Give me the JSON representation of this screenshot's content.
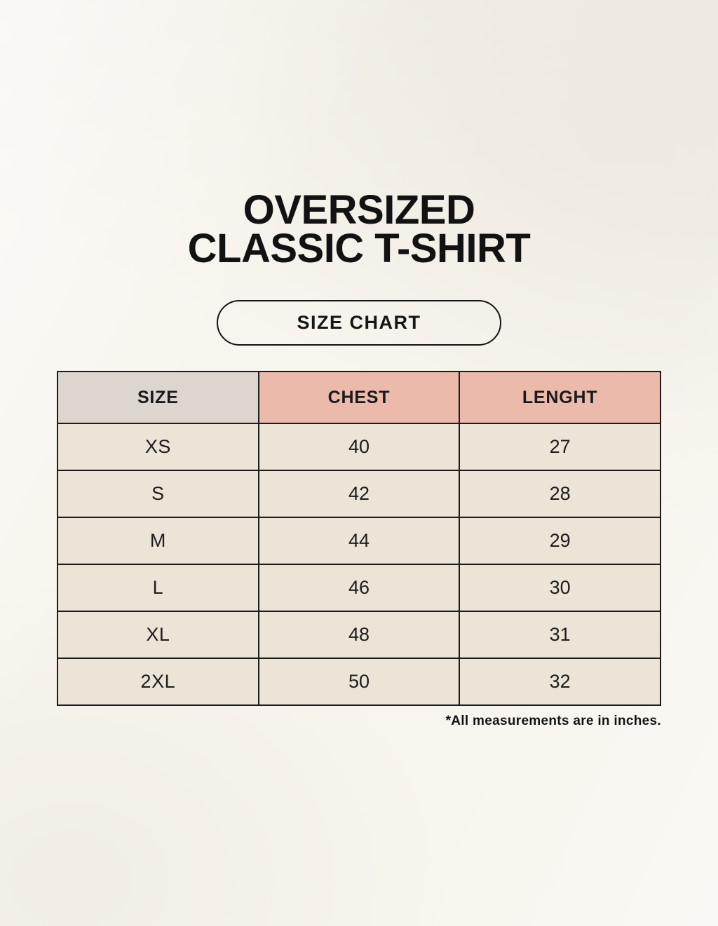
{
  "header": {
    "title_line1": "OVERSIZED",
    "title_line2": "CLASSIC T-SHIRT",
    "badge_label": "SIZE CHART"
  },
  "footer": {
    "note": "*All measurements are in inches."
  },
  "colors": {
    "page_background": "#f8f5ee",
    "size_column_fill": "#ddd6cf",
    "measure_header_fill": "#ecbaab",
    "data_cell_fill": "#ebe4d7",
    "table_border": "#1c1c1c",
    "text": "#141414"
  },
  "chart_data": {
    "type": "table",
    "title": "OVERSIZED CLASSIC T-SHIRT",
    "subtitle": "SIZE CHART",
    "columns": [
      "SIZE",
      "CHEST",
      "LENGHT"
    ],
    "rows": [
      [
        "XS",
        "40",
        "27"
      ],
      [
        "S",
        "42",
        "28"
      ],
      [
        "M",
        "44",
        "29"
      ],
      [
        "L",
        "46",
        "30"
      ],
      [
        "XL",
        "48",
        "31"
      ],
      [
        "2XL",
        "50",
        "32"
      ]
    ],
    "units": "inches",
    "note": "*All measurements are in inches."
  }
}
